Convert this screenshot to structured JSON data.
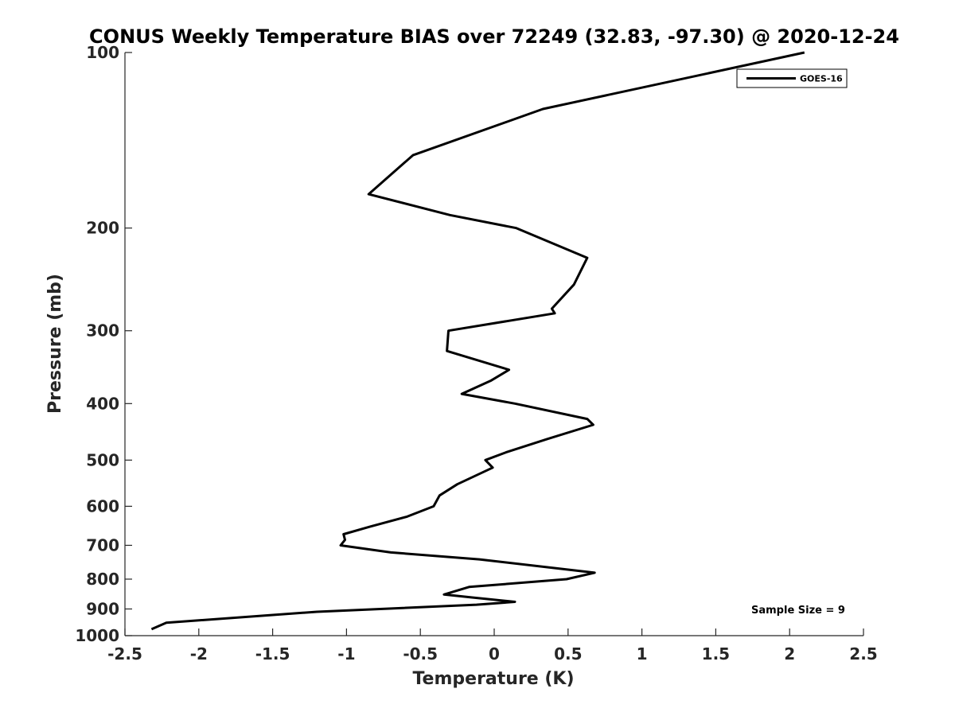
{
  "chart_data": {
    "type": "line",
    "title": "CONUS Weekly Temperature BIAS over 72249 (32.83, -97.30) @ 2020-12-24",
    "xlabel": "Temperature (K)",
    "ylabel": "Pressure (mb)",
    "xlim": [
      -2.5,
      2.5
    ],
    "ylim": [
      100,
      1000
    ],
    "yscale": "log",
    "yreversed": true,
    "xticks": [
      -2.5,
      -2,
      -1.5,
      -1,
      -0.5,
      0,
      0.5,
      1,
      1.5,
      2,
      2.5
    ],
    "xtick_labels": [
      "-2.5",
      "-2",
      "-1.5",
      "-1",
      "-0.5",
      "0",
      "0.5",
      "1",
      "1.5",
      "2",
      "2.5"
    ],
    "yticks": [
      100,
      200,
      300,
      400,
      500,
      600,
      700,
      800,
      900,
      1000
    ],
    "ytick_labels": [
      "100",
      "200",
      "300",
      "400",
      "500",
      "600",
      "700",
      "800",
      "900",
      "1000"
    ],
    "grid": false,
    "legend_position": "top-right",
    "series": [
      {
        "name": "GOES-16",
        "color": "#000000",
        "points": [
          {
            "t": 2.1,
            "p": 100
          },
          {
            "t": 0.33,
            "p": 125
          },
          {
            "t": -0.55,
            "p": 150
          },
          {
            "t": -0.85,
            "p": 175
          },
          {
            "t": -0.3,
            "p": 190
          },
          {
            "t": 0.15,
            "p": 200
          },
          {
            "t": 0.63,
            "p": 225
          },
          {
            "t": 0.54,
            "p": 250
          },
          {
            "t": 0.39,
            "p": 275
          },
          {
            "t": 0.41,
            "p": 280
          },
          {
            "t": -0.31,
            "p": 300
          },
          {
            "t": -0.32,
            "p": 325
          },
          {
            "t": 0.1,
            "p": 350
          },
          {
            "t": -0.02,
            "p": 365
          },
          {
            "t": -0.22,
            "p": 385
          },
          {
            "t": 0.14,
            "p": 400
          },
          {
            "t": 0.63,
            "p": 425
          },
          {
            "t": 0.67,
            "p": 435
          },
          {
            "t": 0.36,
            "p": 460
          },
          {
            "t": 0.08,
            "p": 485
          },
          {
            "t": -0.06,
            "p": 500
          },
          {
            "t": -0.01,
            "p": 515
          },
          {
            "t": -0.25,
            "p": 550
          },
          {
            "t": -0.37,
            "p": 575
          },
          {
            "t": -0.41,
            "p": 600
          },
          {
            "t": -0.59,
            "p": 625
          },
          {
            "t": -0.84,
            "p": 650
          },
          {
            "t": -1.02,
            "p": 670
          },
          {
            "t": -1.01,
            "p": 685
          },
          {
            "t": -1.04,
            "p": 700
          },
          {
            "t": -0.7,
            "p": 720
          },
          {
            "t": -0.1,
            "p": 740
          },
          {
            "t": 0.68,
            "p": 780
          },
          {
            "t": 0.49,
            "p": 800
          },
          {
            "t": -0.17,
            "p": 825
          },
          {
            "t": -0.34,
            "p": 850
          },
          {
            "t": -0.15,
            "p": 860
          },
          {
            "t": 0.14,
            "p": 875
          },
          {
            "t": -0.12,
            "p": 885
          },
          {
            "t": -1.2,
            "p": 910
          },
          {
            "t": -2.22,
            "p": 950
          },
          {
            "t": -2.32,
            "p": 975
          }
        ]
      }
    ],
    "annotation": "Sample Size = 9"
  }
}
